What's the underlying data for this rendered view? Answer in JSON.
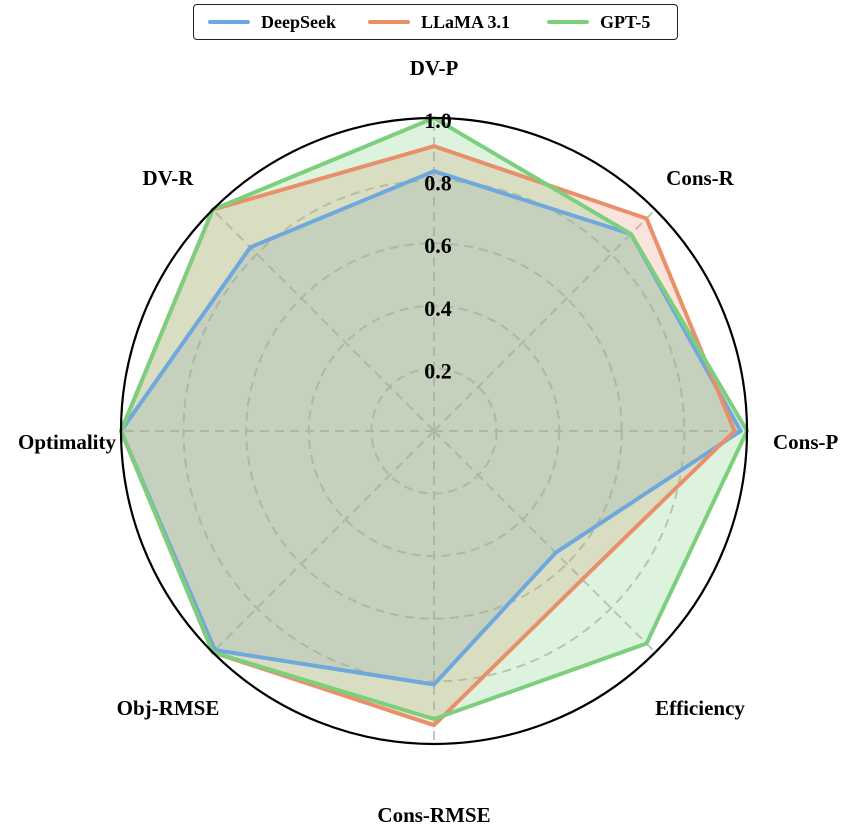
{
  "chart_data": {
    "type": "radar",
    "axes": [
      "DV-P",
      "Cons-R",
      "Cons-P",
      "Efficiency",
      "Cons-RMSE",
      "Obj-RMSE",
      "Optimality",
      "DV-R"
    ],
    "rmax": 1.0,
    "ticks": [
      0.2,
      0.4,
      0.6,
      0.8,
      1.0
    ],
    "tick_labels": [
      "0.2",
      "0.4",
      "0.6",
      "0.8",
      "1.0"
    ],
    "grid": true,
    "legend": {
      "position": "top-center",
      "entries": [
        "DeepSeek",
        "LLaMA 3.1",
        "GPT-5"
      ]
    },
    "series": [
      {
        "name": "DeepSeek",
        "color": "#6fa8dc",
        "values": [
          0.83,
          0.89,
          0.98,
          0.55,
          0.81,
          0.99,
          1.0,
          0.83
        ]
      },
      {
        "name": "LLaMA 3.1",
        "color": "#e8906a",
        "values": [
          0.91,
          0.96,
          0.96,
          0.67,
          0.94,
          1.0,
          1.0,
          1.0
        ]
      },
      {
        "name": "GPT-5",
        "color": "#7dcf7d",
        "values": [
          1.0,
          0.89,
          1.0,
          0.96,
          0.92,
          1.0,
          1.0,
          1.0
        ]
      }
    ]
  }
}
